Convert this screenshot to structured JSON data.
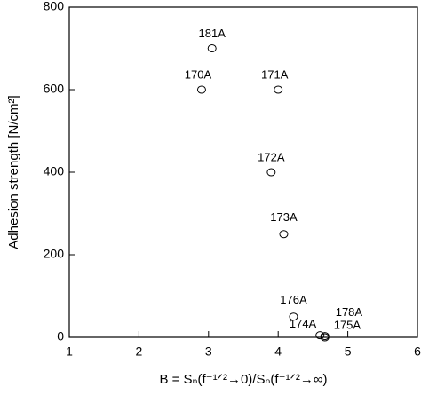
{
  "chart_data": {
    "type": "scatter",
    "xlabel": "B = Sₙ(f⁻¹ᐟ²→0)/Sₙ(f⁻¹ᐟ²→∞)",
    "ylabel": "Adhesion strength [N/cm²]",
    "labels": [
      "181A",
      "170A",
      "171A",
      "172A",
      "173A",
      "176A",
      "174A",
      "178A",
      "175A"
    ],
    "x": [
      3.05,
      2.9,
      4.0,
      3.9,
      4.08,
      4.22,
      4.6,
      4.67,
      4.67
    ],
    "y": [
      700,
      600,
      600,
      400,
      250,
      50,
      5,
      3,
      0
    ],
    "color": "#000000",
    "xlim": [
      1,
      6
    ],
    "xticks": [
      1,
      2,
      3,
      4,
      5,
      6
    ],
    "ylim": [
      0,
      800
    ],
    "yticks": [
      0,
      200,
      400,
      600,
      800
    ]
  }
}
